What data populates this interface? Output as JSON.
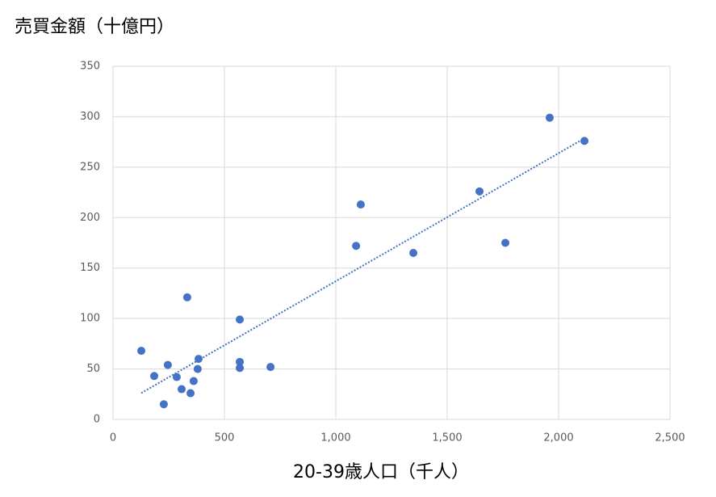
{
  "chart_data": {
    "type": "scatter",
    "y_axis_title": "売買金額（十億円）",
    "x_axis_title": "20-39歳人口（千人）",
    "x": [
      127,
      185,
      228,
      246,
      286,
      308,
      333,
      348,
      362,
      380,
      384,
      569,
      569,
      569,
      707,
      1091,
      1112,
      1348,
      1645,
      1761,
      1960,
      2116
    ],
    "values": [
      68,
      43,
      15,
      54,
      42,
      30,
      121,
      26,
      38,
      50,
      60,
      99,
      57,
      51,
      52,
      172,
      213,
      165,
      226,
      175,
      299,
      276
    ],
    "color": "#4472c4",
    "trendline": "linear",
    "xlim": [
      0,
      2500
    ],
    "xticks": [
      0,
      500,
      {
        "value": 1000,
        "label": "1,000"
      },
      {
        "value": 1500,
        "label": "1,500"
      },
      {
        "value": 2000,
        "label": "2,000"
      },
      {
        "value": 2500,
        "label": "2,500"
      }
    ],
    "ylim": [
      0,
      350
    ],
    "yticks": [
      0,
      50,
      100,
      150,
      200,
      250,
      300,
      350
    ],
    "grid": true
  }
}
